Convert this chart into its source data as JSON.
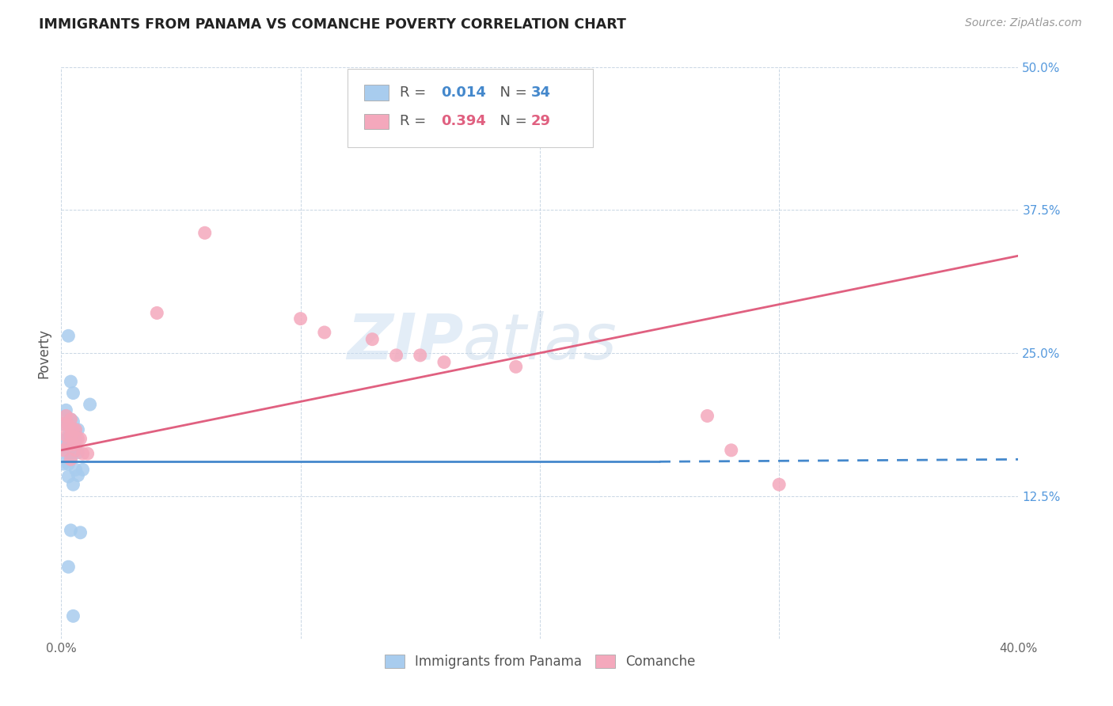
{
  "title": "IMMIGRANTS FROM PANAMA VS COMANCHE POVERTY CORRELATION CHART",
  "source": "Source: ZipAtlas.com",
  "ylabel": "Poverty",
  "y_ticks": [
    0.0,
    0.125,
    0.25,
    0.375,
    0.5
  ],
  "y_tick_labels": [
    "",
    "12.5%",
    "25.0%",
    "37.5%",
    "50.0%"
  ],
  "x_ticks": [
    0.0,
    0.1,
    0.2,
    0.3,
    0.4
  ],
  "x_tick_labels": [
    "0.0%",
    "",
    "",
    "",
    "40.0%"
  ],
  "xlim": [
    0.0,
    0.4
  ],
  "ylim": [
    0.0,
    0.5
  ],
  "color_blue": "#A8CCEE",
  "color_pink": "#F4A8BC",
  "line_blue": "#4488CC",
  "line_pink": "#E06080",
  "watermark_zip": "ZIP",
  "watermark_atlas": "atlas",
  "blue_points": [
    [
      0.003,
      0.265
    ],
    [
      0.005,
      0.215
    ],
    [
      0.012,
      0.205
    ],
    [
      0.004,
      0.225
    ],
    [
      0.002,
      0.2
    ],
    [
      0.002,
      0.195
    ],
    [
      0.004,
      0.192
    ],
    [
      0.001,
      0.188
    ],
    [
      0.003,
      0.188
    ],
    [
      0.005,
      0.19
    ],
    [
      0.006,
      0.182
    ],
    [
      0.007,
      0.183
    ],
    [
      0.003,
      0.178
    ],
    [
      0.005,
      0.178
    ],
    [
      0.002,
      0.174
    ],
    [
      0.004,
      0.174
    ],
    [
      0.006,
      0.174
    ],
    [
      0.001,
      0.168
    ],
    [
      0.003,
      0.168
    ],
    [
      0.002,
      0.163
    ],
    [
      0.005,
      0.163
    ],
    [
      0.007,
      0.163
    ],
    [
      0.004,
      0.158
    ],
    [
      0.001,
      0.153
    ],
    [
      0.003,
      0.153
    ],
    [
      0.006,
      0.148
    ],
    [
      0.009,
      0.148
    ],
    [
      0.003,
      0.142
    ],
    [
      0.007,
      0.143
    ],
    [
      0.005,
      0.135
    ],
    [
      0.004,
      0.095
    ],
    [
      0.008,
      0.093
    ],
    [
      0.003,
      0.063
    ],
    [
      0.005,
      0.02
    ]
  ],
  "pink_points": [
    [
      0.002,
      0.195
    ],
    [
      0.004,
      0.192
    ],
    [
      0.001,
      0.188
    ],
    [
      0.003,
      0.187
    ],
    [
      0.005,
      0.183
    ],
    [
      0.006,
      0.183
    ],
    [
      0.002,
      0.178
    ],
    [
      0.004,
      0.178
    ],
    [
      0.007,
      0.175
    ],
    [
      0.008,
      0.175
    ],
    [
      0.003,
      0.17
    ],
    [
      0.005,
      0.17
    ],
    [
      0.001,
      0.165
    ],
    [
      0.006,
      0.165
    ],
    [
      0.009,
      0.162
    ],
    [
      0.011,
      0.162
    ],
    [
      0.004,
      0.157
    ],
    [
      0.04,
      0.285
    ],
    [
      0.06,
      0.355
    ],
    [
      0.1,
      0.28
    ],
    [
      0.11,
      0.268
    ],
    [
      0.13,
      0.262
    ],
    [
      0.14,
      0.248
    ],
    [
      0.15,
      0.248
    ],
    [
      0.16,
      0.242
    ],
    [
      0.19,
      0.238
    ],
    [
      0.27,
      0.195
    ],
    [
      0.28,
      0.165
    ],
    [
      0.3,
      0.135
    ]
  ],
  "blue_line_solid": [
    [
      0.0,
      0.155
    ],
    [
      0.25,
      0.155
    ]
  ],
  "blue_line_dashed": [
    [
      0.25,
      0.155
    ],
    [
      0.4,
      0.157
    ]
  ],
  "pink_line": [
    [
      0.0,
      0.165
    ],
    [
      0.4,
      0.335
    ]
  ]
}
